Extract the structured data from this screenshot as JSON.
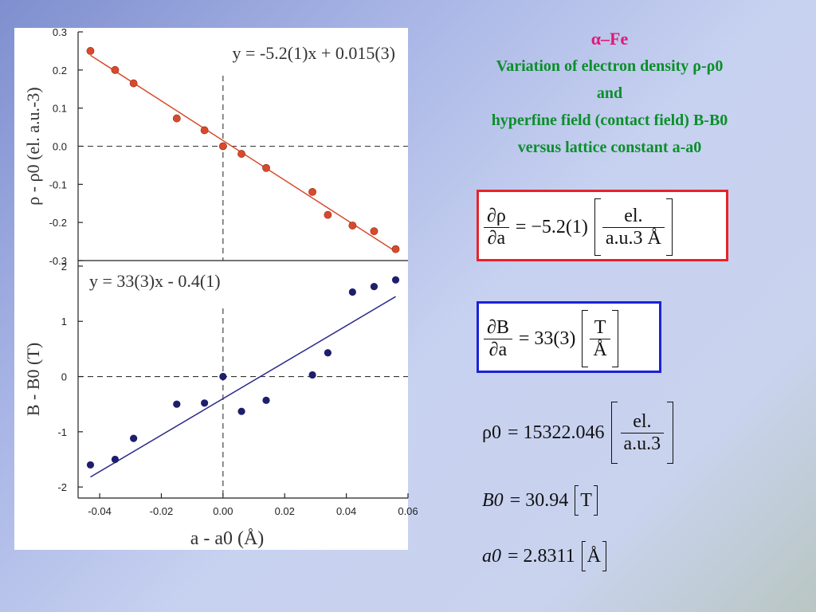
{
  "chart_data": [
    {
      "type": "scatter",
      "panel": "top",
      "equation": "y = -5.2(1)x + 0.015(3)",
      "ylabel": "ρ - ρ0 (el. a.u.-3)",
      "ylim": [
        -0.3,
        0.3
      ],
      "yticks": [
        "0.3",
        "0.2",
        "0.1",
        "0.0",
        "-0.1",
        "-0.2",
        "-0.3"
      ],
      "x": [
        -0.043,
        -0.035,
        -0.029,
        -0.015,
        -0.006,
        0.0,
        0.006,
        0.014,
        0.029,
        0.034,
        0.042,
        0.049,
        0.056
      ],
      "y": [
        0.25,
        0.2,
        0.165,
        0.073,
        0.042,
        0.0,
        -0.02,
        -0.057,
        -0.12,
        -0.18,
        -0.208,
        -0.223,
        -0.27
      ],
      "fit": {
        "slope": -5.2,
        "intercept": 0.015
      },
      "marker_color": "#d94a2c",
      "line_color": "#d94a2c"
    },
    {
      "type": "scatter",
      "panel": "bottom",
      "equation": "y = 33(3)x - 0.4(1)",
      "ylabel": "B - B0 (T)",
      "xlabel": "a - a0 (Å)",
      "xlim": [
        -0.047,
        0.06
      ],
      "ylim": [
        -2.2,
        2.1
      ],
      "xticks": [
        "-0.04",
        "-0.02",
        "0.00",
        "0.02",
        "0.04",
        "0.06"
      ],
      "yticks": [
        "2",
        "1",
        "0",
        "-1",
        "-2"
      ],
      "x": [
        -0.043,
        -0.035,
        -0.029,
        -0.015,
        -0.006,
        0.0,
        0.006,
        0.014,
        0.029,
        0.034,
        0.042,
        0.049,
        0.056
      ],
      "y": [
        -1.6,
        -1.5,
        -1.12,
        -0.5,
        -0.48,
        0.0,
        -0.63,
        -0.43,
        0.03,
        0.43,
        1.53,
        1.63,
        1.75
      ],
      "fit": {
        "slope": 33,
        "intercept": -0.4
      },
      "marker_color": "#1e1e6e",
      "line_color": "#2a2a8a"
    }
  ],
  "text": {
    "title": "α–Fe",
    "line1": "Variation of electron density ρ-ρ0",
    "line2": "and",
    "line3": "hyperfine field (contact field) B-B0",
    "line4": "versus lattice constant a-a0"
  },
  "formulas": {
    "drho": {
      "num": "∂ρ",
      "den": "∂a",
      "value": "= −5.2(1)",
      "unit_num": "el.",
      "unit_den": "a.u.3 Å",
      "border": "#e8232a"
    },
    "dB": {
      "num": "∂B",
      "den": "∂a",
      "value": "= 33(3)",
      "unit_num": "T",
      "unit_den": "Å",
      "border": "#1b22d6"
    },
    "rho0": {
      "lhs": "ρ0",
      "value": "= 15322.046",
      "unit_num": "el.",
      "unit_den": "a.u.3"
    },
    "B0": {
      "lhs": "B0",
      "value": "= 30.94",
      "unit": "T"
    },
    "a0": {
      "lhs": "a0",
      "value": "= 2.8311",
      "unit": "Å"
    }
  }
}
